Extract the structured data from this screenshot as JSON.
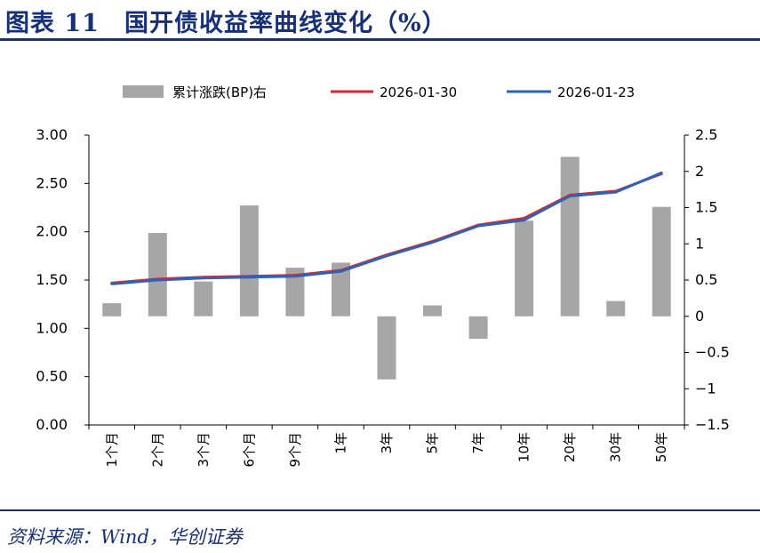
{
  "header": {
    "title": "图表 11　国开债收益率曲线变化（%）"
  },
  "footer": {
    "source": "资料来源：Wind，华创证券"
  },
  "chart_data": {
    "type": "bar+line",
    "title": "图表 11　国开债收益率曲线变化（%）",
    "categories": [
      "1个月",
      "2个月",
      "3个月",
      "6个月",
      "9个月",
      "1年",
      "3年",
      "5年",
      "7年",
      "10年",
      "20年",
      "30年",
      "50年"
    ],
    "series": [
      {
        "name": "累计涨跌(BP)右",
        "kind": "bar",
        "axis": "right",
        "color": "#a6a6a6",
        "values": [
          0.18,
          1.15,
          0.48,
          1.53,
          0.67,
          0.74,
          -0.87,
          0.15,
          -0.31,
          1.32,
          2.2,
          0.21,
          1.51
        ]
      },
      {
        "name": "2026-01-30",
        "kind": "line",
        "axis": "left",
        "color": "#e0242b",
        "values": [
          1.47,
          1.51,
          1.53,
          1.54,
          1.55,
          1.6,
          1.76,
          1.9,
          2.07,
          2.14,
          2.38,
          2.42,
          2.6
        ]
      },
      {
        "name": "2026-01-23",
        "kind": "line",
        "axis": "left",
        "color": "#2a63b8",
        "values": [
          1.46,
          1.5,
          1.52,
          1.53,
          1.54,
          1.59,
          1.75,
          1.89,
          2.06,
          2.12,
          2.37,
          2.41,
          2.61
        ]
      }
    ],
    "left_axis": {
      "ylim": [
        0,
        3
      ],
      "ticks": [
        0,
        0.5,
        1,
        1.5,
        2,
        2.5,
        3
      ],
      "tick_labels": [
        "0.00",
        "0.50",
        "1.00",
        "1.50",
        "2.00",
        "2.50",
        "3.00"
      ]
    },
    "right_axis": {
      "ylim": [
        -1.5,
        2.5
      ],
      "ticks": [
        -1.5,
        -1,
        -0.5,
        0,
        0.5,
        1,
        1.5,
        2,
        2.5
      ],
      "tick_labels": [
        "-1.5",
        "-1",
        "-0.5",
        "0",
        "0.5",
        "1",
        "1.5",
        "2",
        "2.5"
      ]
    },
    "legend": {
      "position": "top"
    },
    "grid": false
  }
}
